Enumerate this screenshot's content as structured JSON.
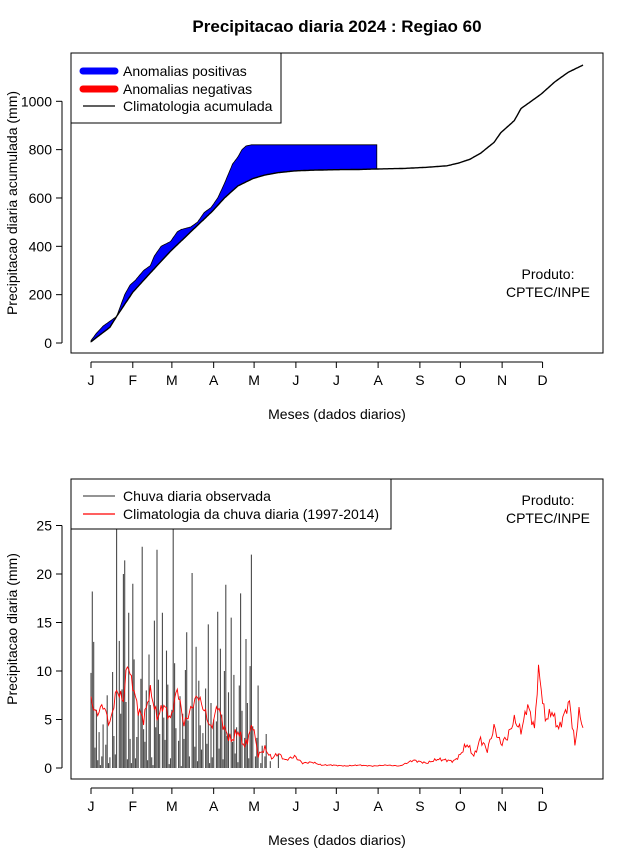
{
  "title": "Precipitacao diaria 2024 : Regiao 60",
  "product_label_line1": "Produto:",
  "product_label_line2": "CPTEC/INPE",
  "months": [
    "J",
    "F",
    "M",
    "A",
    "M",
    "J",
    "J",
    "A",
    "S",
    "O",
    "N",
    "D"
  ],
  "chart_data": [
    {
      "type": "area",
      "title": "Precipitacao diaria 2024 : Regiao 60",
      "xlabel": "Meses (dados diarios)",
      "ylabel": "Precipitacao diaria acumulada (mm)",
      "xlim": [
        1,
        366
      ],
      "ylim": [
        0,
        1150
      ],
      "yticks": [
        0,
        200,
        400,
        600,
        800,
        1000
      ],
      "legend": {
        "position": "top-left",
        "entries": [
          {
            "label": "Anomalias positivas",
            "color": "#0000ff",
            "style": "thick"
          },
          {
            "label": "Anomalias negativas",
            "color": "#ff0000",
            "style": "thick"
          },
          {
            "label": "Climatologia acumulada",
            "color": "#000000",
            "style": "line"
          }
        ]
      },
      "climatology_cumulative": {
        "days": [
          1,
          15,
          20,
          32,
          45,
          60,
          75,
          91,
          100,
          110,
          121,
          130,
          140,
          152,
          165,
          182,
          200,
          213,
          232,
          250,
          265,
          274,
          282,
          290,
          300,
          305,
          315,
          320,
          335,
          345,
          355,
          366
        ],
        "values": [
          5,
          65,
          110,
          210,
          290,
          380,
          460,
          545,
          600,
          650,
          680,
          695,
          705,
          712,
          715,
          717,
          718,
          720,
          722,
          727,
          733,
          745,
          760,
          785,
          830,
          870,
          920,
          970,
          1030,
          1080,
          1120,
          1150
        ]
      },
      "observed_cumulative": {
        "days": [
          1,
          5,
          10,
          20,
          26,
          30,
          34,
          40,
          45,
          48,
          53,
          60,
          65,
          68,
          75,
          80,
          85,
          90,
          95,
          100,
          103,
          106,
          110,
          113,
          116,
          120,
          127,
          135,
          143,
          150,
          160,
          170,
          180,
          190,
          200,
          210,
          213
        ],
        "values": [
          10,
          40,
          70,
          110,
          200,
          240,
          260,
          300,
          320,
          360,
          400,
          420,
          460,
          470,
          480,
          500,
          540,
          560,
          600,
          660,
          700,
          740,
          770,
          800,
          815,
          820,
          820,
          820,
          820,
          820,
          820,
          820,
          820,
          820,
          820,
          820,
          820
        ]
      }
    },
    {
      "type": "bar",
      "title": "",
      "xlabel": "Meses (dados diarios)",
      "ylabel": "Precipitacao diaria (mm)",
      "xlim": [
        1,
        366
      ],
      "ylim": [
        0,
        28
      ],
      "yticks": [
        0,
        5,
        10,
        15,
        20,
        25
      ],
      "legend": {
        "position": "top-left",
        "entries": [
          {
            "label": "Chuva diaria observada",
            "color": "#555555",
            "style": "line"
          },
          {
            "label": "Climatologia da chuva diaria (1997-2014)",
            "color": "#ff0000",
            "style": "line"
          }
        ]
      },
      "observed_daily": {
        "days_start": 1,
        "values": [
          9.8,
          18.2,
          13.0,
          2.1,
          6.0,
          0.8,
          3.7,
          0.3,
          1.2,
          4.5,
          0.0,
          2.4,
          7.5,
          0.5,
          1.1,
          0.0,
          9.9,
          3.3,
          1.4,
          26.0,
          0.0,
          13.1,
          5.6,
          8.1,
          20.0,
          21.4,
          6.8,
          0.9,
          16.0,
          3.0,
          0.5,
          19.0,
          11.2,
          1.0,
          3.2,
          5.5,
          0.0,
          9.2,
          22.8,
          4.0,
          2.7,
          8.0,
          0.8,
          11.7,
          6.5,
          1.1,
          0.3,
          15.2,
          4.2,
          22.5,
          9.1,
          3.5,
          0.0,
          16.0,
          5.2,
          2.9,
          12.1,
          8.6,
          0.4,
          1.0,
          6.0,
          26.0,
          10.8,
          4.1,
          0.0,
          2.8,
          7.4,
          0.2,
          5.6,
          3.0,
          10.1,
          14.0,
          4.9,
          1.2,
          0.0,
          20.1,
          6.3,
          2.2,
          12.5,
          0.7,
          9.0,
          4.4,
          1.9,
          3.6,
          0.0,
          8.2,
          2.5,
          14.8,
          0.5,
          6.7,
          1.1,
          5.0,
          0.0,
          4.8,
          16.1,
          2.0,
          12.3,
          5.5,
          0.9,
          10.0,
          18.9,
          3.3,
          7.8,
          0.0,
          15.5,
          2.7,
          9.6,
          1.5,
          4.2,
          0.6,
          8.5,
          18.0,
          5.9,
          0.0,
          3.1,
          13.3,
          6.7,
          1.0,
          10.5,
          22.0,
          4.3,
          0.0,
          1.2,
          3.1,
          8.5,
          0.0,
          0.5,
          2.3,
          0.0,
          1.2,
          3.5,
          0.0,
          0.0,
          0.7,
          0.0,
          0.0,
          0.0,
          0.0,
          0.0,
          1.5,
          0.0,
          0.0,
          0.0,
          0.0,
          0.0,
          0.0,
          0.0,
          0.0,
          0.0,
          0.0,
          0.0,
          0.0,
          0.0,
          0.0,
          0.0,
          0.0,
          0.0,
          0.0,
          0.0,
          0.0,
          0.0,
          0.0,
          0.0,
          0.0,
          0.0,
          0.0,
          0.0,
          0.0,
          0.0,
          0.0,
          0.0,
          0.0,
          0.0,
          0.0,
          0.0,
          0.0,
          0.0,
          0.0,
          0.0,
          0.0,
          0.0,
          0.0,
          0.0,
          0.0,
          0.0,
          0.0,
          0.0,
          0.0,
          0.0,
          0.0,
          0.0,
          0.0,
          0.0,
          0.0,
          0.0,
          0.0,
          0.0,
          0.0,
          0.0,
          0.0,
          0.0,
          0.0
        ]
      },
      "climatology_daily": {
        "days": [
          1,
          5,
          10,
          15,
          20,
          25,
          28,
          32,
          36,
          40,
          45,
          50,
          55,
          60,
          65,
          70,
          75,
          80,
          85,
          90,
          95,
          100,
          105,
          110,
          115,
          121,
          125,
          130,
          135,
          140,
          145,
          152,
          158,
          165,
          172,
          180,
          190,
          200,
          210,
          220,
          230,
          240,
          250,
          258,
          265,
          270,
          274,
          280,
          285,
          290,
          295,
          300,
          305,
          310,
          315,
          320,
          325,
          330,
          333,
          338,
          343,
          348,
          352,
          356,
          360,
          363,
          366
        ],
        "values": [
          7.0,
          5.5,
          6.5,
          4.5,
          8.0,
          7.0,
          10.8,
          8.5,
          6.0,
          5.0,
          8.0,
          5.2,
          6.5,
          5.0,
          8.2,
          4.5,
          6.0,
          7.5,
          6.0,
          4.0,
          6.5,
          4.0,
          2.8,
          3.8,
          2.2,
          4.5,
          1.3,
          2.0,
          1.0,
          1.5,
          0.8,
          1.2,
          0.5,
          0.6,
          0.3,
          0.3,
          0.2,
          0.3,
          0.2,
          0.3,
          0.2,
          0.8,
          0.5,
          0.9,
          0.8,
          0.7,
          1.2,
          2.5,
          1.2,
          3.0,
          1.8,
          4.2,
          2.5,
          3.2,
          5.0,
          3.8,
          6.5,
          4.0,
          10.2,
          5.0,
          5.8,
          4.0,
          5.5,
          6.8,
          2.3,
          5.8,
          4.2
        ]
      }
    }
  ]
}
